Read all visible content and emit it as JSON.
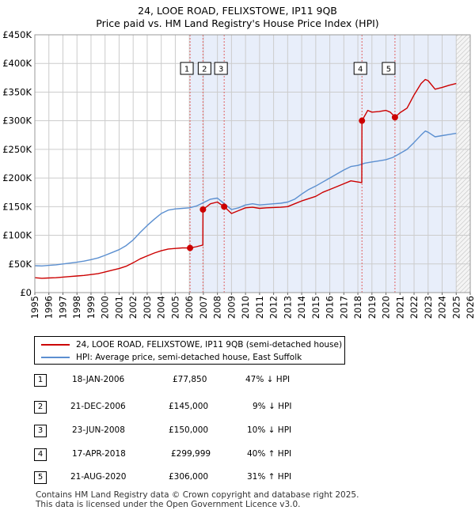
{
  "header": {
    "title": "24, LOOE ROAD, FELIXSTOWE, IP11 9QB",
    "subtitle": "Price paid vs. HM Land Registry's House Price Index (HPI)"
  },
  "legend": {
    "property_label": "24, LOOE ROAD, FELIXSTOWE, IP11 9QB (semi-detached house)",
    "hpi_label": "HPI: Average price, semi-detached house, East Suffolk"
  },
  "colors": {
    "property": "#cc0000",
    "hpi": "#5b8fd0",
    "shade": "#e8eefa",
    "grid": "#cccccc",
    "marker_line": "#e06060"
  },
  "transactions": [
    {
      "num": "1",
      "date": "18-JAN-2006",
      "price": "£77,850",
      "hpi": "47% ↓ HPI"
    },
    {
      "num": "2",
      "date": "21-DEC-2006",
      "price": "£145,000",
      "hpi": "9% ↓ HPI"
    },
    {
      "num": "3",
      "date": "23-JUN-2008",
      "price": "£150,000",
      "hpi": "10% ↓ HPI"
    },
    {
      "num": "4",
      "date": "17-APR-2018",
      "price": "£299,999",
      "hpi": "40% ↑ HPI"
    },
    {
      "num": "5",
      "date": "21-AUG-2020",
      "price": "£306,000",
      "hpi": "31% ↑ HPI"
    }
  ],
  "footer": {
    "line1": "Contains HM Land Registry data © Crown copyright and database right 2025.",
    "line2": "This data is licensed under the Open Government Licence v3.0."
  },
  "chart_data": {
    "type": "line",
    "title": "24, LOOE ROAD, FELIXSTOWE, IP11 9QB",
    "subtitle": "Price paid vs. HM Land Registry's House Price Index (HPI)",
    "xlabel": "",
    "ylabel": "",
    "xlim": [
      1995,
      2026
    ],
    "ylim": [
      0,
      450000
    ],
    "x_ticks": [
      1995,
      1996,
      1997,
      1998,
      1999,
      2000,
      2001,
      2002,
      2003,
      2004,
      2005,
      2006,
      2007,
      2008,
      2009,
      2010,
      2011,
      2012,
      2013,
      2014,
      2015,
      2016,
      2017,
      2018,
      2019,
      2020,
      2021,
      2022,
      2023,
      2024,
      2025,
      2026
    ],
    "y_ticks": [
      0,
      50000,
      100000,
      150000,
      200000,
      250000,
      300000,
      350000,
      400000,
      450000
    ],
    "y_tick_labels": [
      "£0",
      "£50K",
      "£100K",
      "£150K",
      "£200K",
      "£250K",
      "£300K",
      "£350K",
      "£400K",
      "£450K"
    ],
    "grid": true,
    "legend_position": "below",
    "shaded_from": 2006.05,
    "hatched_from": 2025.0,
    "sale_points": [
      {
        "label": "1",
        "x": 2006.05,
        "y": 77850
      },
      {
        "label": "2",
        "x": 2006.97,
        "y": 145000
      },
      {
        "label": "3",
        "x": 2008.48,
        "y": 150000
      },
      {
        "label": "4",
        "x": 2018.29,
        "y": 299999
      },
      {
        "label": "5",
        "x": 2020.64,
        "y": 306000
      }
    ],
    "series": [
      {
        "name": "24, LOOE ROAD, FELIXSTOWE, IP11 9QB (semi-detached house)",
        "x": [
          1995,
          1995.5,
          1996,
          1996.5,
          1997,
          1997.5,
          1998,
          1998.5,
          1999,
          1999.5,
          2000,
          2000.5,
          2001,
          2001.5,
          2002,
          2002.5,
          2003,
          2003.5,
          2004,
          2004.5,
          2005,
          2005.5,
          2006.04,
          2006.05,
          2006.5,
          2006.96,
          2006.97,
          2007.5,
          2008,
          2008.47,
          2008.48,
          2009,
          2009.5,
          2010,
          2010.5,
          2011,
          2011.5,
          2012,
          2012.5,
          2013,
          2013.5,
          2014,
          2014.5,
          2015,
          2015.5,
          2016,
          2016.5,
          2017,
          2017.5,
          2018.28,
          2018.29,
          2018.7,
          2019,
          2019.5,
          2020,
          2020.3,
          2020.63,
          2020.64,
          2021,
          2021.5,
          2022,
          2022.5,
          2022.8,
          2023,
          2023.5,
          2024,
          2024.5,
          2025
        ],
        "y": [
          26000,
          25000,
          25500,
          26000,
          27000,
          28000,
          29000,
          30000,
          31500,
          33000,
          36000,
          39000,
          42000,
          46000,
          52000,
          59000,
          64000,
          69000,
          73000,
          76000,
          77000,
          78000,
          77800,
          77850,
          80000,
          83000,
          145000,
          155000,
          158000,
          150000,
          150000,
          138000,
          143000,
          148000,
          149000,
          147000,
          148000,
          148500,
          149000,
          150000,
          155000,
          160000,
          164000,
          168000,
          175000,
          180000,
          185000,
          190000,
          195000,
          192000,
          299999,
          318000,
          315000,
          316000,
          318000,
          315000,
          307000,
          306000,
          314000,
          322000,
          345000,
          365000,
          372000,
          370000,
          355000,
          358000,
          362000,
          365000
        ]
      },
      {
        "name": "HPI: Average price, semi-detached house, East Suffolk",
        "x": [
          1995,
          1995.5,
          1996,
          1996.5,
          1997,
          1997.5,
          1998,
          1998.5,
          1999,
          1999.5,
          2000,
          2000.5,
          2001,
          2001.5,
          2002,
          2002.5,
          2003,
          2003.5,
          2004,
          2004.5,
          2005,
          2005.5,
          2006,
          2006.5,
          2007,
          2007.5,
          2008,
          2008.5,
          2009,
          2009.5,
          2010,
          2010.5,
          2011,
          2011.5,
          2012,
          2012.5,
          2013,
          2013.5,
          2014,
          2014.5,
          2015,
          2015.5,
          2016,
          2016.5,
          2017,
          2017.5,
          2018,
          2018.5,
          2019,
          2019.5,
          2020,
          2020.5,
          2021,
          2021.5,
          2022,
          2022.5,
          2022.8,
          2023,
          2023.5,
          2024,
          2024.5,
          2025
        ],
        "y": [
          47000,
          46500,
          47500,
          48500,
          50000,
          51500,
          53000,
          55000,
          57500,
          60500,
          65000,
          70000,
          75000,
          82000,
          92000,
          105000,
          117000,
          128000,
          138000,
          144000,
          146000,
          147000,
          148000,
          151000,
          157000,
          163000,
          165000,
          155000,
          145000,
          148000,
          153000,
          155000,
          153000,
          154000,
          155000,
          156000,
          158000,
          163000,
          172000,
          180000,
          186000,
          193000,
          200000,
          207000,
          214000,
          220000,
          222000,
          226000,
          228000,
          230000,
          232000,
          236000,
          243000,
          250000,
          262000,
          275000,
          282000,
          280000,
          272000,
          274000,
          276000,
          278000
        ]
      }
    ]
  }
}
